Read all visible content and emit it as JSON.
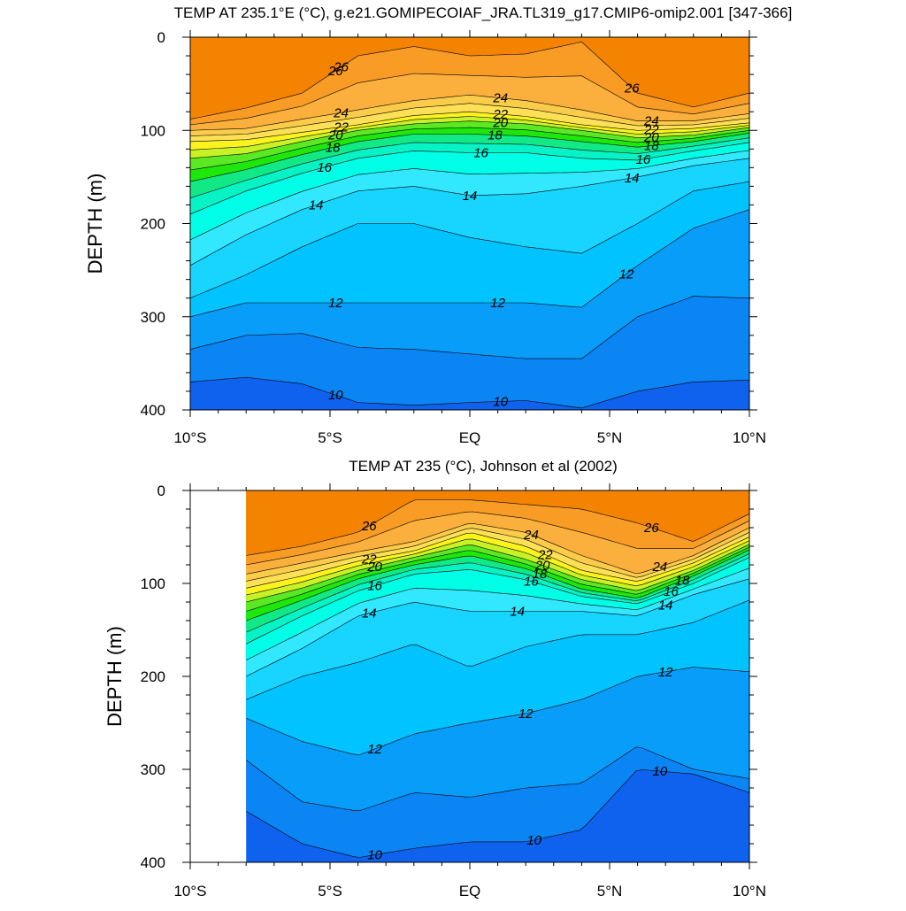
{
  "chart_data": [
    {
      "type": "contour",
      "title": "TEMP AT 235.1°E (°C), g.e21.GOMIPECOIAF_JRA.TL319_g17.CMIP6-omip2.001 [347-366]",
      "ylabel": "DEPTH (m)",
      "xlabel": "",
      "xlim": [
        -10,
        10
      ],
      "ylim": [
        400,
        0
      ],
      "x_ticks": [
        -10,
        -5,
        0,
        5,
        10
      ],
      "x_tick_labels": [
        "10°S",
        "5°S",
        "EQ",
        "5°N",
        "10°N"
      ],
      "y_ticks": [
        0,
        100,
        200,
        300,
        400
      ],
      "y_tick_labels": [
        "0",
        "100",
        "200",
        "300",
        "400"
      ],
      "data_xrange": [
        -10,
        10
      ],
      "contour_levels": [
        9,
        10,
        11,
        12,
        13,
        14,
        15,
        16,
        17,
        18,
        19,
        20,
        21,
        22,
        23,
        24,
        25,
        26,
        27
      ],
      "isotherm_depths": {
        "lat": [
          -10,
          -8,
          -6,
          -4,
          -2,
          0,
          2,
          4,
          6,
          8,
          10
        ],
        "T27": [
          null,
          null,
          null,
          null,
          null,
          null,
          null,
          null,
          0,
          0,
          null
        ],
        "T26": [
          88,
          76,
          60,
          20,
          10,
          20,
          18,
          5,
          60,
          75,
          60
        ],
        "T24": [
          100,
          98,
          88,
          78,
          68,
          62,
          68,
          78,
          90,
          90,
          82
        ],
        "T22": [
          112,
          110,
          102,
          94,
          84,
          80,
          85,
          94,
          100,
          98,
          92
        ],
        "T20": [
          130,
          125,
          112,
          100,
          93,
          90,
          93,
          100,
          108,
          105,
          97
        ],
        "T18": [
          155,
          142,
          126,
          112,
          104,
          104,
          106,
          112,
          118,
          112,
          103
        ],
        "T16": [
          190,
          165,
          146,
          130,
          122,
          124,
          124,
          130,
          132,
          122,
          113
        ],
        "T14": [
          245,
          212,
          185,
          165,
          160,
          170,
          168,
          160,
          150,
          138,
          130
        ],
        "T13": [
          280,
          255,
          225,
          200,
          200,
          215,
          225,
          232,
          200,
          165,
          155
        ],
        "T12": [
          300,
          285,
          285,
          285,
          285,
          285,
          285,
          290,
          245,
          205,
          185
        ],
        "T11": [
          335,
          320,
          318,
          333,
          335,
          340,
          345,
          345,
          300,
          278,
          280
        ],
        "T10": [
          370,
          365,
          372,
          392,
          395,
          392,
          390,
          398,
          380,
          370,
          368
        ]
      },
      "contour_labels": [
        "26",
        "24",
        "22",
        "20",
        "18",
        "16",
        "14",
        "12",
        "10"
      ]
    },
    {
      "type": "contour",
      "title": "TEMP AT 235 (°C), Johnson et al (2002)",
      "ylabel": "DEPTH (m)",
      "xlabel": "",
      "xlim": [
        -10,
        10
      ],
      "ylim": [
        400,
        0
      ],
      "x_ticks": [
        -10,
        -5,
        0,
        5,
        10
      ],
      "x_tick_labels": [
        "10°S",
        "5°S",
        "EQ",
        "5°N",
        "10°N"
      ],
      "y_ticks": [
        0,
        100,
        200,
        300,
        400
      ],
      "y_tick_labels": [
        "0",
        "100",
        "200",
        "300",
        "400"
      ],
      "data_xrange": [
        -8,
        10
      ],
      "contour_levels": [
        9,
        10,
        11,
        12,
        13,
        14,
        15,
        16,
        17,
        18,
        19,
        20,
        21,
        22,
        23,
        24,
        25,
        26,
        27
      ],
      "isotherm_depths": {
        "lat": [
          -8,
          -6,
          -4,
          -2,
          0,
          2,
          4,
          6,
          8,
          10
        ],
        "T27": [
          null,
          null,
          null,
          null,
          null,
          null,
          null,
          0,
          0,
          null
        ],
        "T26": [
          70,
          60,
          45,
          10,
          10,
          15,
          20,
          35,
          55,
          25
        ],
        "T24": [
          90,
          78,
          66,
          55,
          35,
          45,
          70,
          90,
          70,
          40
        ],
        "T22": [
          105,
          92,
          76,
          65,
          45,
          60,
          86,
          98,
          78,
          50
        ],
        "T20": [
          120,
          105,
          86,
          72,
          58,
          74,
          96,
          108,
          86,
          58
        ],
        "T18": [
          140,
          118,
          95,
          80,
          70,
          84,
          106,
          116,
          92,
          64
        ],
        "T16": [
          165,
          135,
          108,
          90,
          85,
          96,
          114,
          122,
          100,
          72
        ],
        "T14": [
          200,
          170,
          135,
          120,
          130,
          130,
          130,
          135,
          112,
          95
        ],
        "T13": [
          225,
          200,
          185,
          165,
          190,
          168,
          155,
          155,
          142,
          118
        ],
        "T12": [
          245,
          270,
          285,
          262,
          250,
          240,
          225,
          200,
          190,
          195
        ],
        "T11": [
          290,
          335,
          345,
          325,
          330,
          320,
          315,
          275,
          300,
          310
        ],
        "T10": [
          345,
          380,
          395,
          385,
          378,
          378,
          365,
          300,
          305,
          325
        ]
      },
      "contour_labels": [
        "26",
        "24",
        "22",
        "20",
        "18",
        "16",
        "14",
        "12",
        "10"
      ]
    }
  ]
}
